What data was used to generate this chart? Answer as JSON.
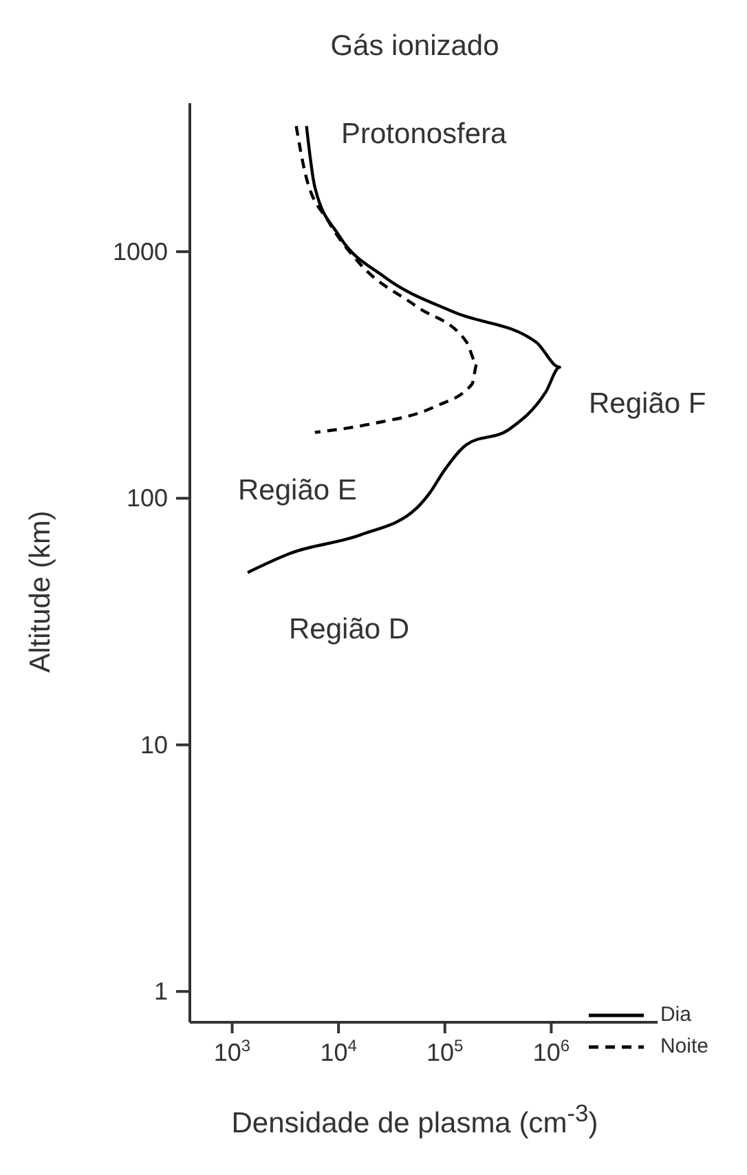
{
  "chart_data": {
    "type": "line",
    "title": "Gás ionizado",
    "xlabel": "Densidade de plasma (cm$^{-3}$)",
    "ylabel": "Altitude (km)",
    "log": "xy",
    "xlim": [
      400,
      10000000
    ],
    "ylim": [
      0.75,
      4000
    ],
    "xticks": [
      {
        "value": 1000,
        "label": "10$^{3}$"
      },
      {
        "value": 10000,
        "label": "10$^{4}$"
      },
      {
        "value": 100000,
        "label": "10$^{5}$"
      },
      {
        "value": 1000000,
        "label": "10$^{6}$"
      }
    ],
    "yticks": [
      1,
      10,
      100,
      1000
    ],
    "legend": "bottom right",
    "marker": "none",
    "annotations": [
      "Protonosfera",
      "Região F",
      "Região E",
      "Região D"
    ],
    "series": [
      {
        "name": "Dia",
        "color": "#000000",
        "line_style": "solid",
        "x": [
          5000,
          6000,
          10000,
          27000,
          120000,
          720000,
          1200000,
          890000,
          400000,
          160000,
          98000,
          72000,
          54000,
          16000,
          3600,
          1400
        ],
        "values": [
          3230,
          1820,
          1170,
          790,
          570,
          430,
          340,
          270,
          190,
          165,
          129,
          105,
          91,
          71,
          60,
          50
        ]
      },
      {
        "name": "Noite",
        "color": "#000000",
        "line_style": "dashed",
        "x": [
          4000,
          4900,
          8100,
          16000,
          54000,
          160000,
          200000,
          180000,
          80000,
          20000,
          6000
        ],
        "values": [
          3230,
          2050,
          1320,
          890,
          600,
          430,
          350,
          290,
          235,
          200,
          185
        ]
      }
    ]
  }
}
